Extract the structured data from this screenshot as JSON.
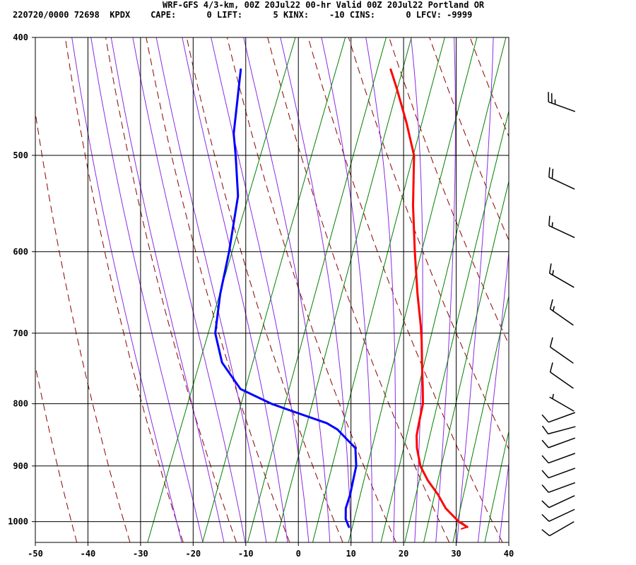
{
  "header": {
    "title": "WRF-GFS 4/3-km, 00Z 20Jul22 00-hr Valid 00Z 20Jul22 Portland OR",
    "run_id": "220720/0000 72698  KPDX",
    "cape": "CAPE:      0",
    "lift": "LIFT:      5",
    "kinx": "KINX:    -10",
    "cins": "CINS:      0",
    "lfcv": "LFCV: -9999"
  },
  "colors": {
    "temperature": "#ff0000",
    "dewpoint": "#0000ff",
    "isobar_isotherm": "#000000",
    "dry_adiabat": "#8b0000",
    "moist_adiabat": "#8a2be2",
    "mixing_ratio": "#008000"
  },
  "chart_data": {
    "type": "line",
    "title": "",
    "xlabel": "",
    "ylabel": "",
    "x_axis": {
      "ticks": [
        -50,
        -40,
        -30,
        -20,
        -10,
        0,
        10,
        20,
        30,
        40
      ],
      "range": [
        -50,
        40
      ]
    },
    "y_axis": {
      "ticks": [
        400,
        500,
        600,
        700,
        800,
        900,
        1000
      ],
      "range": [
        400,
        1040
      ],
      "scale": "log-pressure",
      "inverted": true
    },
    "grid": true,
    "series": [
      {
        "key": "temperature",
        "points": [
          {
            "p": 1010,
            "t": 32.5
          },
          {
            "p": 1000,
            "t": 30.5
          },
          {
            "p": 975,
            "t": 27
          },
          {
            "p": 950,
            "t": 24.5
          },
          {
            "p": 925,
            "t": 21.5
          },
          {
            "p": 900,
            "t": 19
          },
          {
            "p": 870,
            "t": 17
          },
          {
            "p": 850,
            "t": 16
          },
          {
            "p": 830,
            "t": 15.5
          },
          {
            "p": 800,
            "t": 14.8
          },
          {
            "p": 775,
            "t": 13.5
          },
          {
            "p": 745,
            "t": 11.8
          },
          {
            "p": 710,
            "t": 9.8
          },
          {
            "p": 690,
            "t": 8.5
          },
          {
            "p": 650,
            "t": 5.5
          },
          {
            "p": 600,
            "t": 1.8
          },
          {
            "p": 550,
            "t": -2
          },
          {
            "p": 500,
            "t": -5.6
          },
          {
            "p": 470,
            "t": -9.5
          },
          {
            "p": 440,
            "t": -14
          },
          {
            "p": 425,
            "t": -16.5
          }
        ]
      },
      {
        "key": "dewpoint",
        "points": [
          {
            "p": 1010,
            "t": 10
          },
          {
            "p": 995,
            "t": 8.8
          },
          {
            "p": 975,
            "t": 8
          },
          {
            "p": 950,
            "t": 7.8
          },
          {
            "p": 925,
            "t": 7.3
          },
          {
            "p": 900,
            "t": 6.8
          },
          {
            "p": 870,
            "t": 5.3
          },
          {
            "p": 840,
            "t": 0.5
          },
          {
            "p": 830,
            "t": -2
          },
          {
            "p": 810,
            "t": -10
          },
          {
            "p": 800,
            "t": -14
          },
          {
            "p": 778,
            "t": -21
          },
          {
            "p": 740,
            "t": -26.5
          },
          {
            "p": 700,
            "t": -30
          },
          {
            "p": 650,
            "t": -32
          },
          {
            "p": 600,
            "t": -33.5
          },
          {
            "p": 540,
            "t": -36
          },
          {
            "p": 500,
            "t": -39.5
          },
          {
            "p": 480,
            "t": -41.5
          },
          {
            "p": 425,
            "t": -45
          }
        ]
      }
    ],
    "wind_barbs": [
      {
        "p": 1000,
        "dir": 240,
        "speed": 10
      },
      {
        "p": 975,
        "dir": 245,
        "speed": 10
      },
      {
        "p": 950,
        "dir": 245,
        "speed": 10
      },
      {
        "p": 925,
        "dir": 250,
        "speed": 10
      },
      {
        "p": 900,
        "dir": 250,
        "speed": 10
      },
      {
        "p": 875,
        "dir": 250,
        "speed": 10
      },
      {
        "p": 850,
        "dir": 250,
        "speed": 10
      },
      {
        "p": 830,
        "dir": 255,
        "speed": 10
      },
      {
        "p": 810,
        "dir": 250,
        "speed": 10
      },
      {
        "p": 790,
        "dir": 300,
        "speed": 5
      },
      {
        "p": 755,
        "dir": 305,
        "speed": 10
      },
      {
        "p": 720,
        "dir": 305,
        "speed": 10
      },
      {
        "p": 670,
        "dir": 305,
        "speed": 15
      },
      {
        "p": 625,
        "dir": 300,
        "speed": 15
      },
      {
        "p": 570,
        "dir": 295,
        "speed": 15
      },
      {
        "p": 520,
        "dir": 295,
        "speed": 20
      },
      {
        "p": 450,
        "dir": 290,
        "speed": 25
      }
    ]
  }
}
